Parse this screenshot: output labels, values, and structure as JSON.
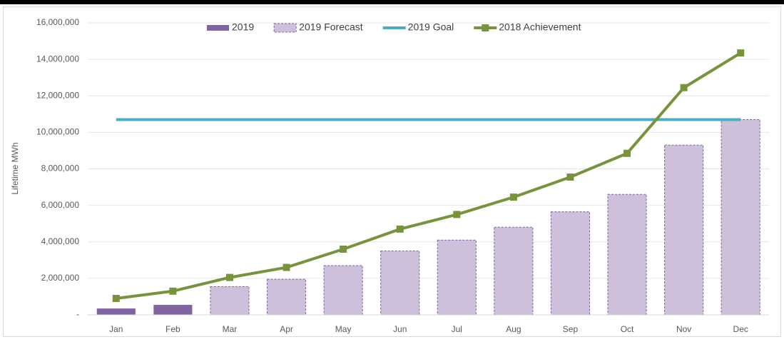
{
  "chart_data": {
    "type": "bar",
    "y_label": "Lifetime MWh",
    "categories": [
      "Jan",
      "Feb",
      "Mar",
      "Apr",
      "May",
      "Jun",
      "Jul",
      "Aug",
      "Sep",
      "Oct",
      "Nov",
      "Dec"
    ],
    "series": [
      {
        "name": "2019",
        "type": "bar",
        "color": "#8064a2",
        "values": [
          350000,
          550000,
          null,
          null,
          null,
          null,
          null,
          null,
          null,
          null,
          null,
          null
        ]
      },
      {
        "name": "2019 Forecast",
        "type": "bar",
        "color": "#ccc0da",
        "border": "#8064a2",
        "values": [
          null,
          null,
          1550000,
          1950000,
          2700000,
          3500000,
          4100000,
          4800000,
          5650000,
          6600000,
          9300000,
          10700000
        ]
      },
      {
        "name": "2019 Goal",
        "type": "line",
        "color": "#4bacc6",
        "values": [
          10700000,
          10700000,
          10700000,
          10700000,
          10700000,
          10700000,
          10700000,
          10700000,
          10700000,
          10700000,
          10700000,
          10700000
        ]
      },
      {
        "name": "2018 Achievement",
        "type": "line",
        "marker": "square",
        "color": "#77933c",
        "values": [
          900000,
          1300000,
          2050000,
          2600000,
          3600000,
          4700000,
          5500000,
          6450000,
          7550000,
          8850000,
          12450000,
          14350000
        ]
      }
    ],
    "ylim": [
      0,
      16000000
    ],
    "yticks": [
      {
        "value": 0,
        "label": "-"
      },
      {
        "value": 2000000,
        "label": "2,000,000"
      },
      {
        "value": 4000000,
        "label": "4,000,000"
      },
      {
        "value": 6000000,
        "label": "6,000,000"
      },
      {
        "value": 8000000,
        "label": "8,000,000"
      },
      {
        "value": 10000000,
        "label": "10,000,000"
      },
      {
        "value": 12000000,
        "label": "12,000,000"
      },
      {
        "value": 14000000,
        "label": "14,000,000"
      },
      {
        "value": 16000000,
        "label": "16,000,000"
      }
    ],
    "grid": true
  }
}
